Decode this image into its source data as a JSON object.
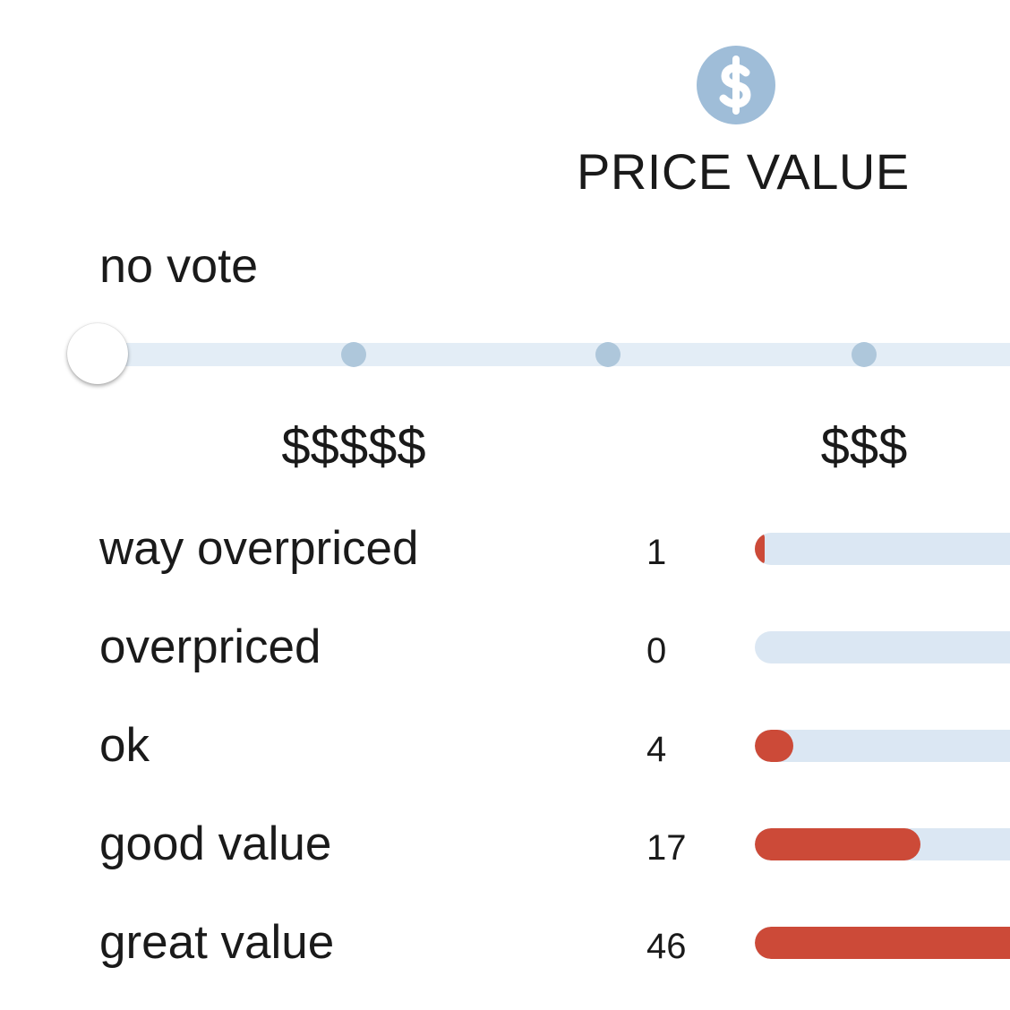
{
  "header": {
    "icon": "dollar-icon",
    "title": "PRICE VALUE",
    "accent_color": "#9fbdd8"
  },
  "slider": {
    "current_label": "no vote",
    "stops": 5,
    "selected_stop": 0,
    "tick_labels": [
      "$$$$$",
      "$$$"
    ]
  },
  "breakdown": {
    "bar_color": "#cc4a38",
    "track_color": "#dbe7f3",
    "rows": [
      {
        "label": "way overpriced",
        "count": "1",
        "value": 1
      },
      {
        "label": "overpriced",
        "count": "0",
        "value": 0
      },
      {
        "label": "ok",
        "count": "4",
        "value": 4
      },
      {
        "label": "good value",
        "count": "17",
        "value": 17
      },
      {
        "label": "great value",
        "count": "46",
        "value": 46
      }
    ]
  }
}
